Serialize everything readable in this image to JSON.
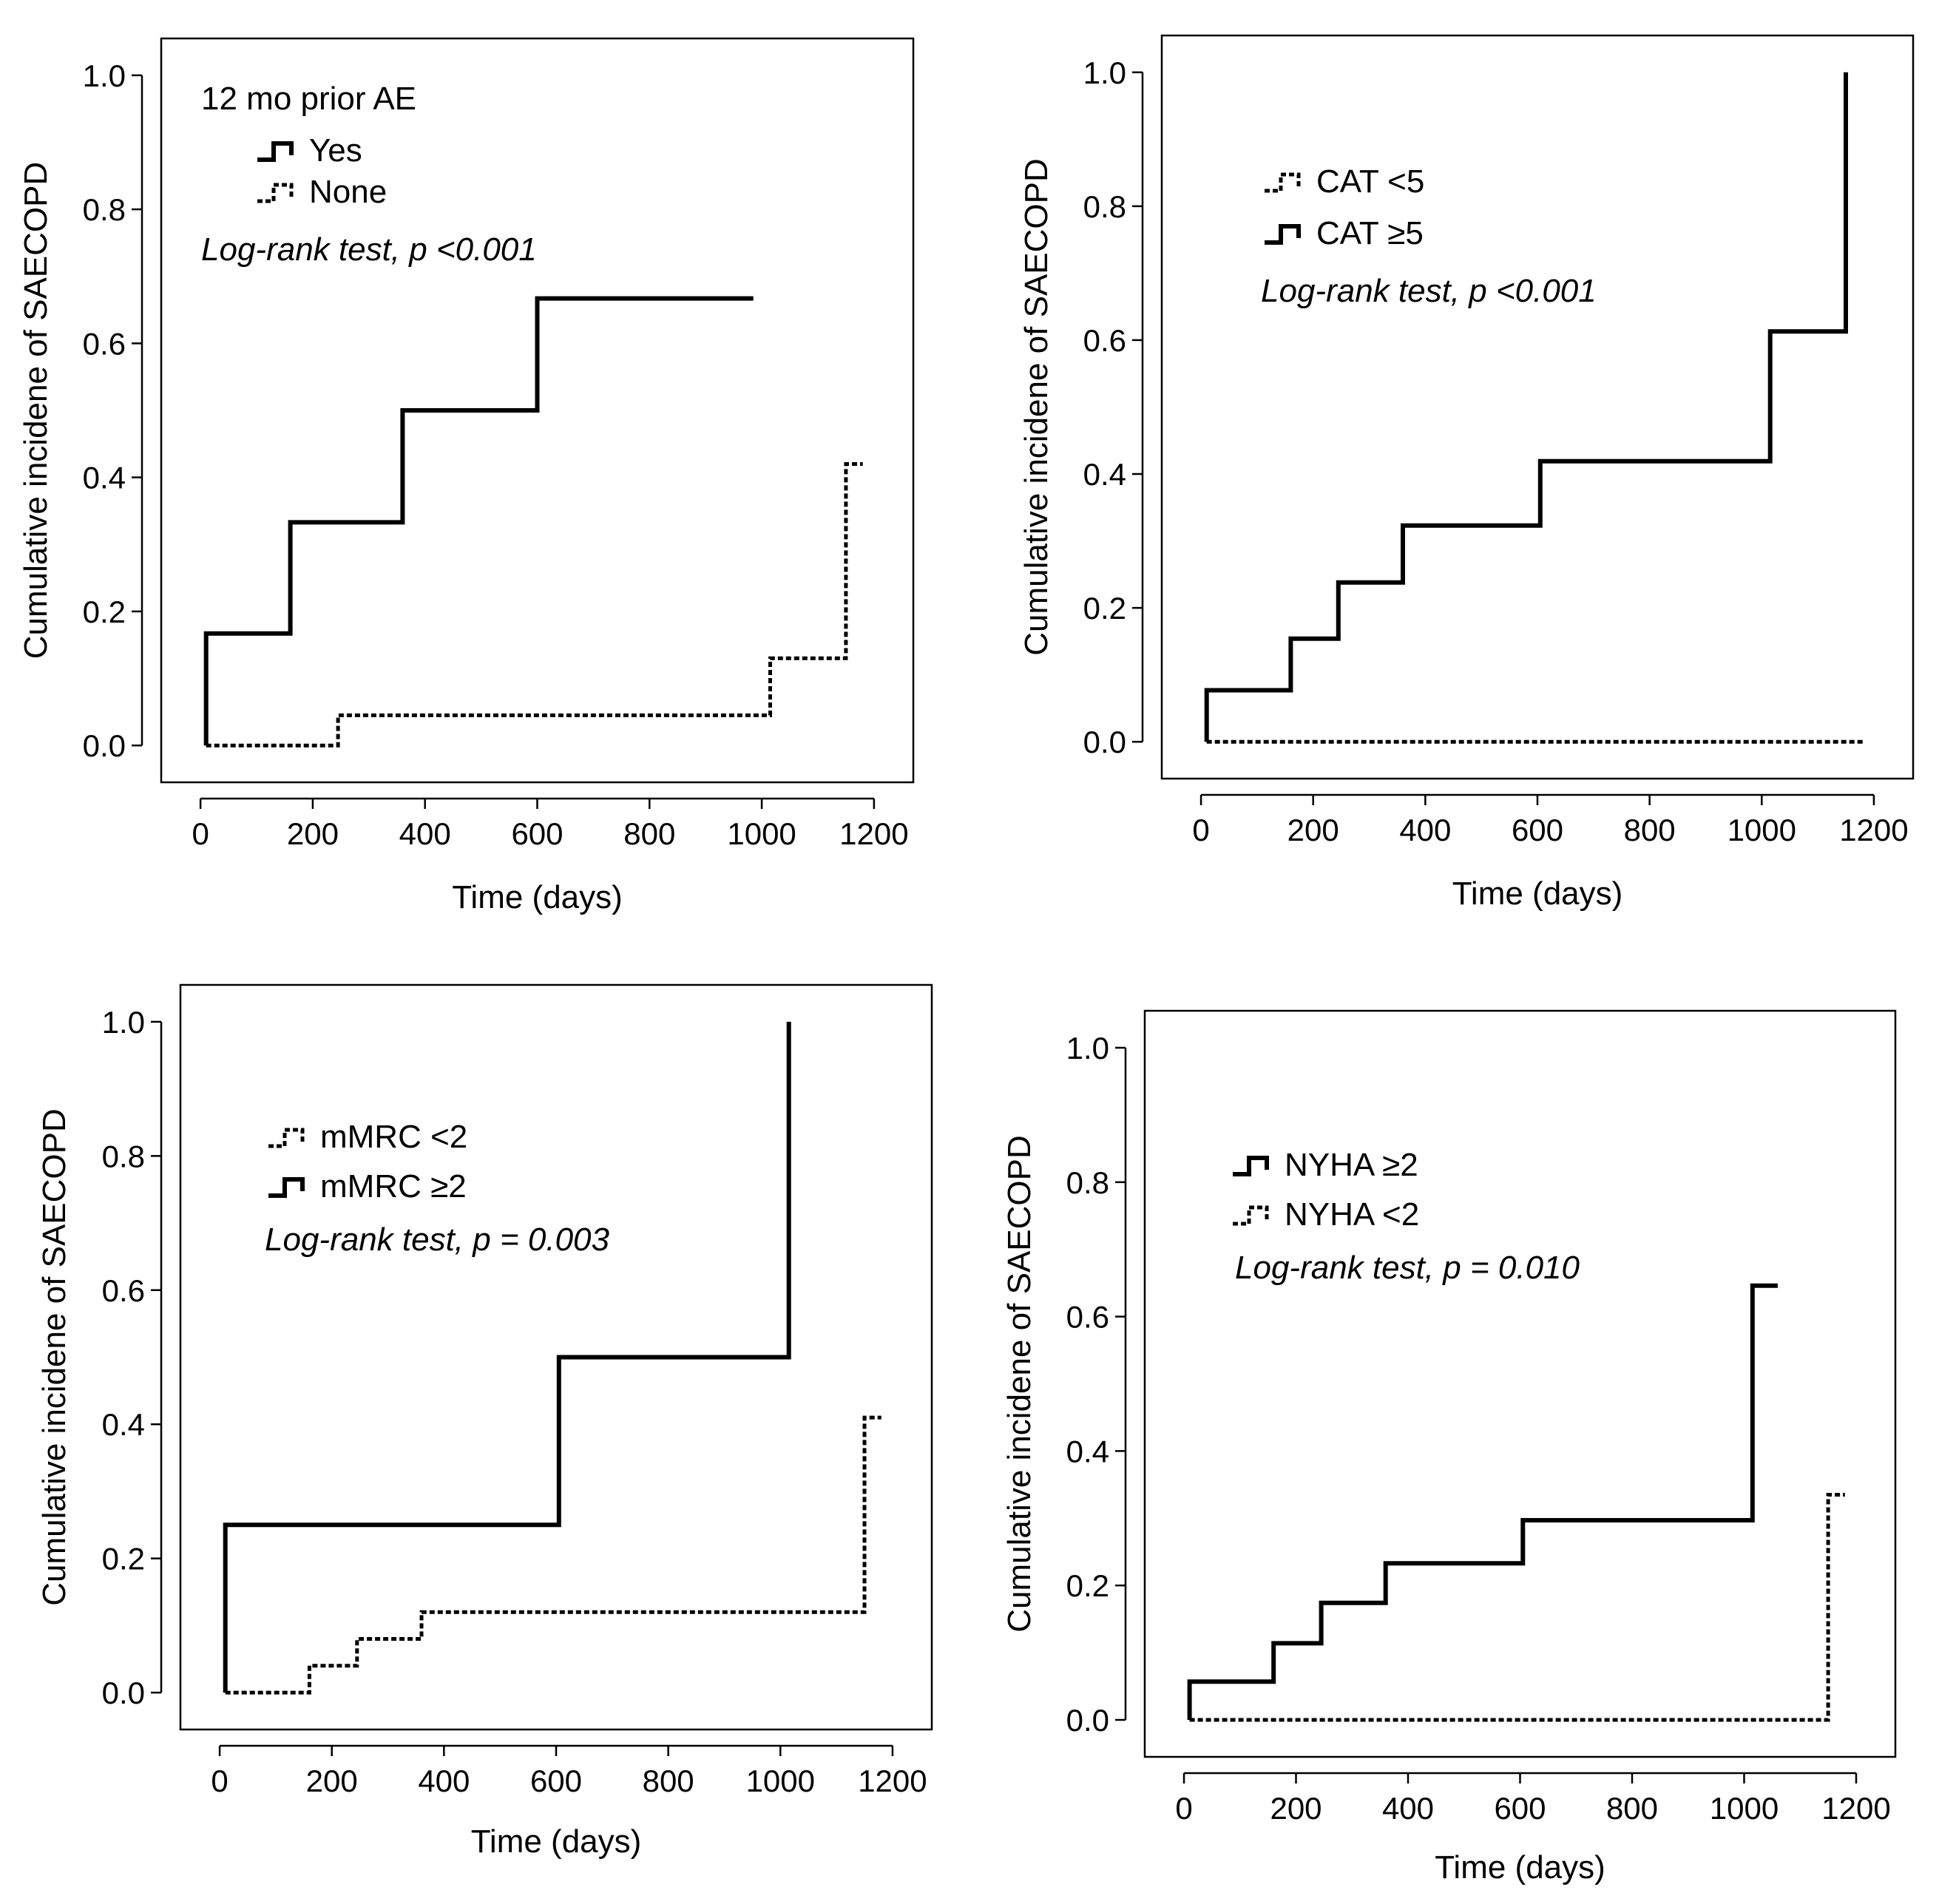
{
  "chart_data": [
    {
      "type": "line",
      "step": true,
      "title": "",
      "xlabel": "Time (days)",
      "ylabel": "Cumulative incidene of SAECOPD",
      "xlim": [
        -70,
        1270
      ],
      "ylim": [
        -0.055,
        1.055
      ],
      "xticks": [
        0,
        200,
        400,
        600,
        800,
        1000,
        1200
      ],
      "xtick_labels": [
        "0",
        "200",
        "400",
        "600",
        "800",
        "1000",
        "1200"
      ],
      "yticks": [
        0.0,
        0.2,
        0.4,
        0.6,
        0.8,
        1.0
      ],
      "ytick_labels": [
        "0.0",
        "0.2",
        "0.4",
        "0.6",
        "0.8",
        "1.0"
      ],
      "legend_title": "12 mo prior AE",
      "legend_position": "top-left",
      "annotation": "Log-rank test, p <0.001",
      "series": [
        {
          "name": "Yes",
          "style": "solid",
          "x": [
            10,
            10,
            160,
            160,
            360,
            360,
            600,
            600,
            985
          ],
          "y": [
            0,
            0.167,
            0.167,
            0.333,
            0.333,
            0.5,
            0.5,
            0.667,
            0.667
          ]
        },
        {
          "name": "None",
          "style": "dotted",
          "x": [
            10,
            245,
            245,
            1015,
            1015,
            1150,
            1150,
            1180
          ],
          "y": [
            0,
            0,
            0.045,
            0.045,
            0.13,
            0.13,
            0.42,
            0.42
          ]
        }
      ]
    },
    {
      "type": "line",
      "step": true,
      "title": "",
      "xlabel": "Time (days)",
      "ylabel": "Cumulative incidene of SAECOPD",
      "xlim": [
        -70,
        1270
      ],
      "ylim": [
        -0.055,
        1.055
      ],
      "xticks": [
        0,
        200,
        400,
        600,
        800,
        1000,
        1200
      ],
      "xtick_labels": [
        "0",
        "200",
        "400",
        "600",
        "800",
        "1000",
        "1200"
      ],
      "yticks": [
        0.0,
        0.2,
        0.4,
        0.6,
        0.8,
        1.0
      ],
      "ytick_labels": [
        "0.0",
        "0.2",
        "0.4",
        "0.6",
        "0.8",
        "1.0"
      ],
      "legend_title": "",
      "legend_position": "top-left",
      "annotation": "Log-rank test, p <0.001",
      "series": [
        {
          "name": "CAT <5",
          "style": "dotted",
          "x": [
            10,
            1180
          ],
          "y": [
            0,
            0
          ]
        },
        {
          "name": "CAT ≥5",
          "style": "solid",
          "x": [
            10,
            10,
            160,
            160,
            245,
            245,
            360,
            360,
            605,
            605,
            1015,
            1015,
            1150,
            1150
          ],
          "y": [
            0,
            0.077,
            0.077,
            0.154,
            0.154,
            0.238,
            0.238,
            0.323,
            0.323,
            0.419,
            0.419,
            0.613,
            0.613,
            1.0
          ]
        }
      ]
    },
    {
      "type": "line",
      "step": true,
      "title": "",
      "xlabel": "Time (days)",
      "ylabel": "Cumulative incidene of SAECOPD",
      "xlim": [
        -70,
        1270
      ],
      "ylim": [
        -0.055,
        1.055
      ],
      "xticks": [
        0,
        200,
        400,
        600,
        800,
        1000,
        1200
      ],
      "xtick_labels": [
        "0",
        "200",
        "400",
        "600",
        "800",
        "1000",
        "1200"
      ],
      "yticks": [
        0.0,
        0.2,
        0.4,
        0.6,
        0.8,
        1.0
      ],
      "ytick_labels": [
        "0.0",
        "0.2",
        "0.4",
        "0.6",
        "0.8",
        "1.0"
      ],
      "legend_title": "",
      "legend_position": "top-left",
      "annotation": "Log-rank test, p = 0.003",
      "series": [
        {
          "name": "mMRC <2",
          "style": "dotted",
          "x": [
            10,
            160,
            160,
            245,
            245,
            360,
            360,
            1150,
            1150,
            1180
          ],
          "y": [
            0,
            0,
            0.04,
            0.04,
            0.08,
            0.08,
            0.12,
            0.12,
            0.41,
            0.41
          ]
        },
        {
          "name": "mMRC ≥2",
          "style": "solid",
          "x": [
            10,
            10,
            605,
            605,
            1015,
            1015
          ],
          "y": [
            0,
            0.25,
            0.25,
            0.5,
            0.5,
            1.0
          ]
        }
      ]
    },
    {
      "type": "line",
      "step": true,
      "title": "",
      "xlabel": "Time (days)",
      "ylabel": "Cumulative incidene of SAECOPD",
      "xlim": [
        -70,
        1270
      ],
      "ylim": [
        -0.055,
        1.055
      ],
      "xticks": [
        0,
        200,
        400,
        600,
        800,
        1000,
        1200
      ],
      "xtick_labels": [
        "0",
        "200",
        "400",
        "600",
        "800",
        "1000",
        "1200"
      ],
      "yticks": [
        0.0,
        0.2,
        0.4,
        0.6,
        0.8,
        1.0
      ],
      "ytick_labels": [
        "0.0",
        "0.2",
        "0.4",
        "0.6",
        "0.8",
        "1.0"
      ],
      "legend_title": "",
      "legend_position": "top-left",
      "annotation": "Log-rank test, p = 0.010",
      "series": [
        {
          "name": "NYHA ≥2",
          "style": "solid",
          "x": [
            10,
            10,
            160,
            160,
            245,
            245,
            360,
            360,
            605,
            605,
            1015,
            1015,
            1060
          ],
          "y": [
            0,
            0.057,
            0.057,
            0.114,
            0.114,
            0.174,
            0.174,
            0.233,
            0.233,
            0.297,
            0.297,
            0.646,
            0.646
          ]
        },
        {
          "name": "NYHA <2",
          "style": "dotted",
          "x": [
            10,
            1150,
            1150,
            1180
          ],
          "y": [
            0,
            0,
            0.335,
            0.335
          ]
        }
      ]
    }
  ]
}
